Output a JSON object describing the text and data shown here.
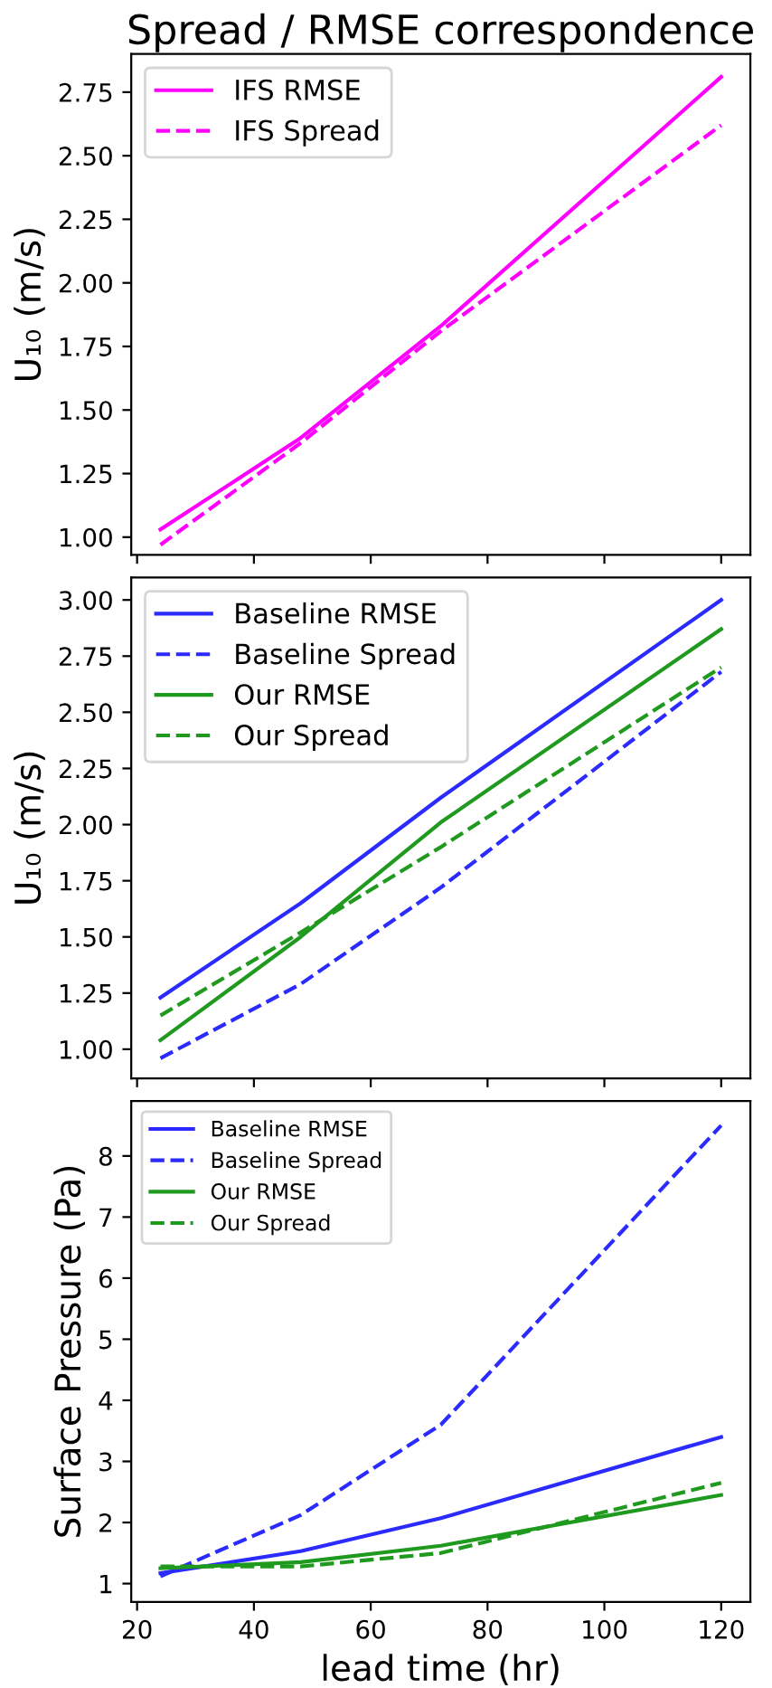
{
  "chart_data": [
    {
      "type": "line",
      "title": "Spread / RMSE correspondence",
      "ylabel": "U₁₀ (m/s)",
      "x": [
        24,
        48,
        72,
        120
      ],
      "xlim": [
        19,
        125
      ],
      "xticks": [
        20,
        40,
        60,
        80,
        100,
        120
      ],
      "ylim": [
        0.93,
        2.9
      ],
      "yticks": [
        {
          "value": 1.0,
          "label": "1.00"
        },
        {
          "value": 1.25,
          "label": "1.25"
        },
        {
          "value": 1.5,
          "label": "1.50"
        },
        {
          "value": 1.75,
          "label": "1.75"
        },
        {
          "value": 2.0,
          "label": "2.00"
        },
        {
          "value": 2.25,
          "label": "2.25"
        },
        {
          "value": 2.5,
          "label": "2.50"
        },
        {
          "value": 2.75,
          "label": "2.75"
        }
      ],
      "tick_labels": "y",
      "legend": "top left",
      "grid": false,
      "series": [
        {
          "name": "IFS RMSE",
          "color": "#ff00ff",
          "line_style": "solid",
          "values": [
            1.03,
            1.39,
            1.83,
            2.81
          ]
        },
        {
          "name": "IFS Spread",
          "color": "#ff00ff",
          "line_style": "dashed",
          "values": [
            0.97,
            1.37,
            1.81,
            2.62
          ]
        }
      ]
    },
    {
      "type": "line",
      "ylabel": "U₁₀ (m/s)",
      "x": [
        24,
        48,
        72,
        120
      ],
      "xlim": [
        19,
        125
      ],
      "xticks": [
        20,
        40,
        60,
        80,
        100,
        120
      ],
      "ylim": [
        0.87,
        3.1
      ],
      "yticks": [
        {
          "value": 1.0,
          "label": "1.00"
        },
        {
          "value": 1.25,
          "label": "1.25"
        },
        {
          "value": 1.5,
          "label": "1.50"
        },
        {
          "value": 1.75,
          "label": "1.75"
        },
        {
          "value": 2.0,
          "label": "2.00"
        },
        {
          "value": 2.25,
          "label": "2.25"
        },
        {
          "value": 2.5,
          "label": "2.50"
        },
        {
          "value": 2.75,
          "label": "2.75"
        },
        {
          "value": 3.0,
          "label": "3.00"
        }
      ],
      "tick_labels": "y",
      "legend": "top left",
      "grid": false,
      "series": [
        {
          "name": "Baseline RMSE",
          "color": "#2b2bff",
          "line_style": "solid",
          "values": [
            1.23,
            1.65,
            2.12,
            3.0
          ]
        },
        {
          "name": "Baseline Spread",
          "color": "#2b2bff",
          "line_style": "dashed",
          "values": [
            0.96,
            1.29,
            1.72,
            2.68
          ]
        },
        {
          "name": "Our RMSE",
          "color": "#1f9a1f",
          "line_style": "solid",
          "values": [
            1.04,
            1.5,
            2.01,
            2.87
          ]
        },
        {
          "name": "Our Spread",
          "color": "#1f9a1f",
          "line_style": "dashed",
          "values": [
            1.15,
            1.52,
            1.9,
            2.7
          ]
        }
      ]
    },
    {
      "type": "line",
      "ylabel": "Surface Pressure (Pa)",
      "xlabel": "lead time (hr)",
      "x": [
        24,
        48,
        72,
        120
      ],
      "xlim": [
        19,
        125
      ],
      "xticks": [
        20,
        40,
        60,
        80,
        100,
        120
      ],
      "ylim": [
        0.7,
        8.9
      ],
      "yticks": [
        1,
        2,
        3,
        4,
        5,
        6,
        7,
        8
      ],
      "legend": "top left",
      "grid": false,
      "series": [
        {
          "name": "Baseline RMSE",
          "color": "#2b2bff",
          "line_style": "solid",
          "values": [
            1.17,
            1.53,
            2.07,
            3.4
          ]
        },
        {
          "name": "Baseline Spread",
          "color": "#2b2bff",
          "line_style": "dashed",
          "values": [
            1.12,
            2.12,
            3.6,
            8.5
          ]
        },
        {
          "name": "Our RMSE",
          "color": "#1f9a1f",
          "line_style": "solid",
          "values": [
            1.25,
            1.35,
            1.62,
            2.45
          ]
        },
        {
          "name": "Our Spread",
          "color": "#1f9a1f",
          "line_style": "dashed",
          "values": [
            1.28,
            1.28,
            1.5,
            2.65
          ]
        }
      ]
    }
  ]
}
